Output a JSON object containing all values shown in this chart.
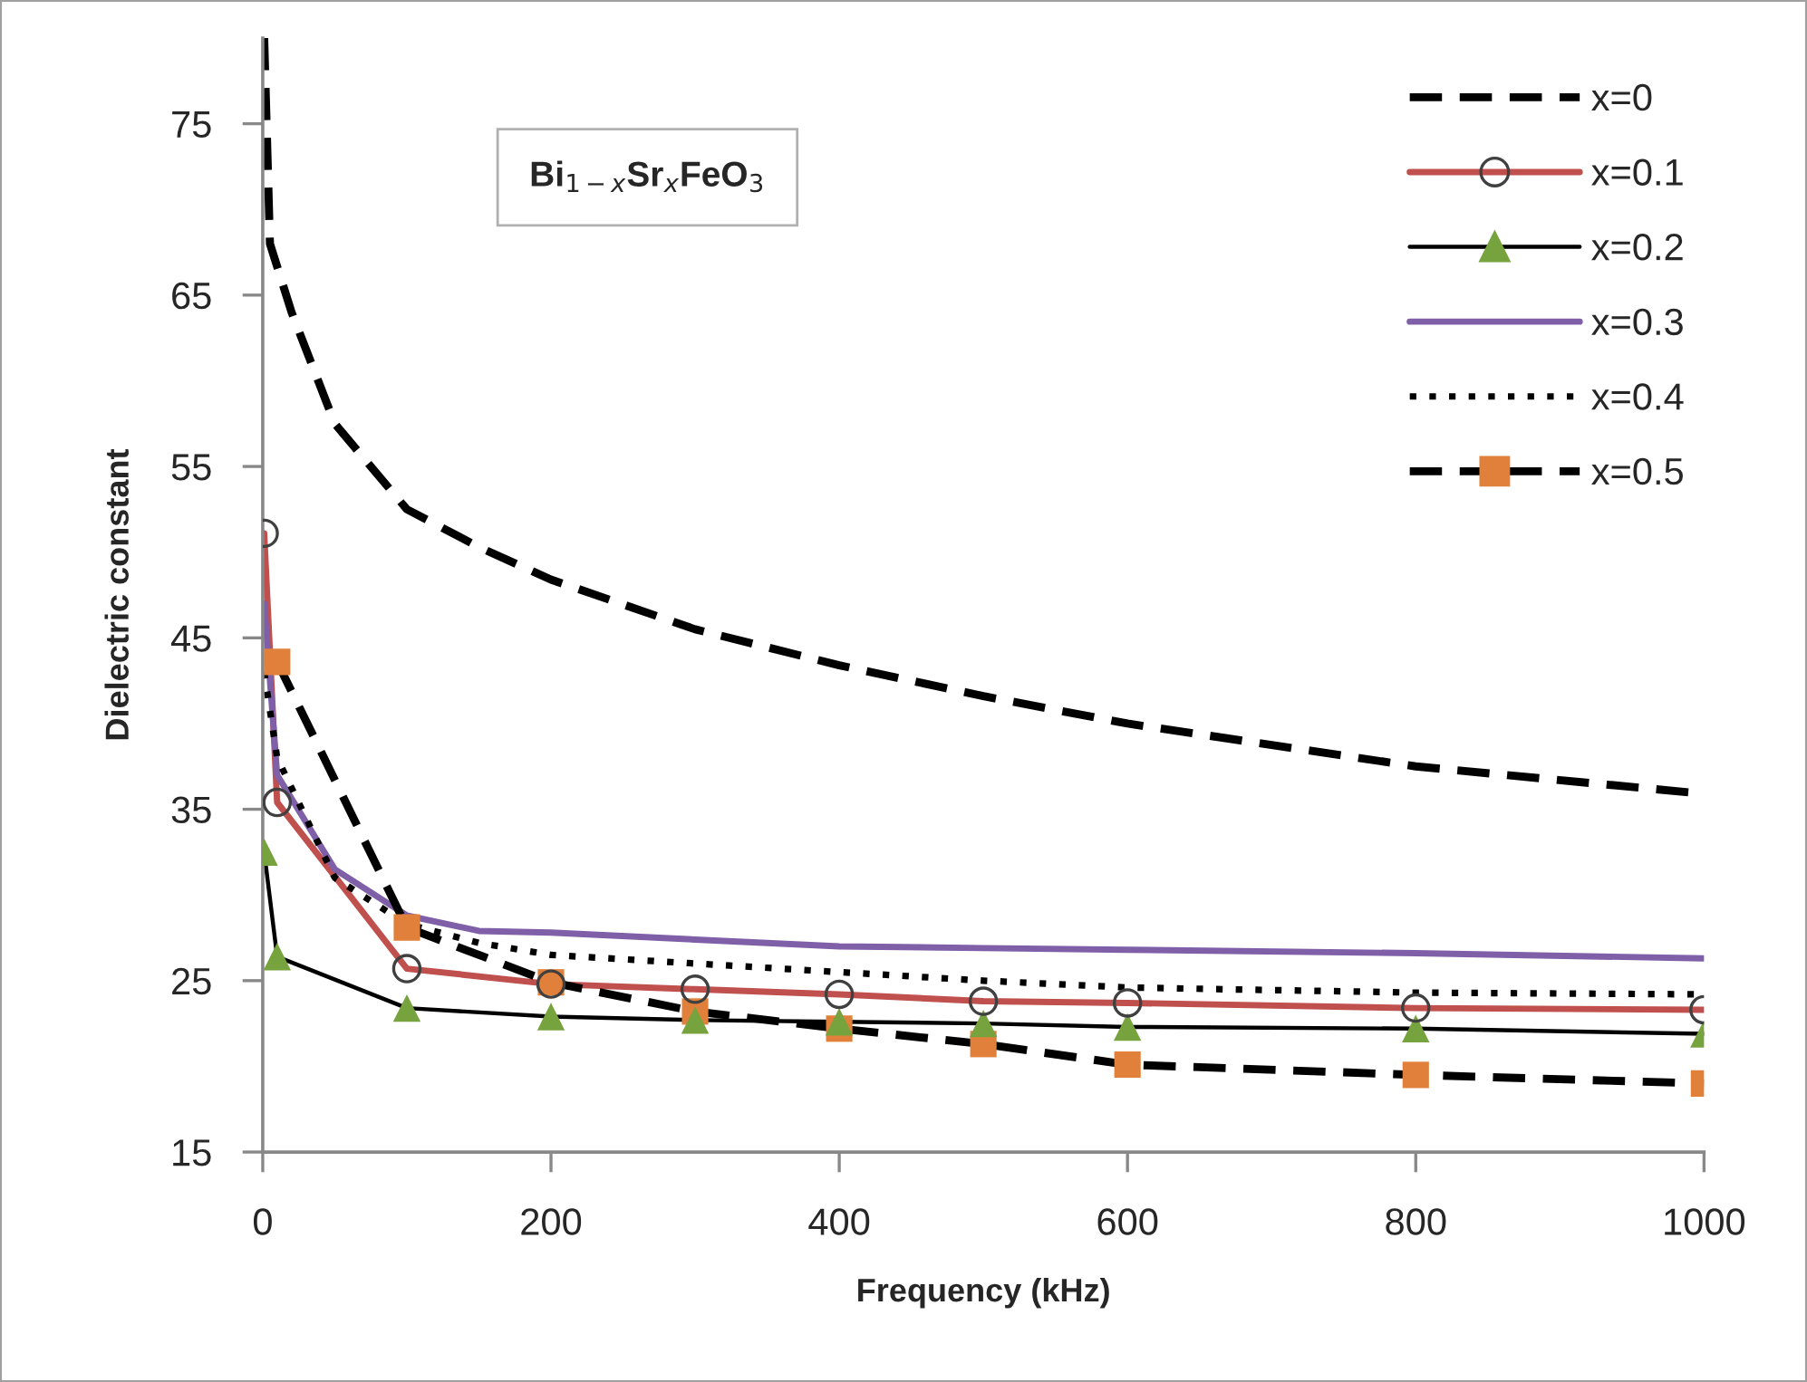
{
  "chart_data": {
    "type": "line",
    "xlabel": "Frequency (kHz)",
    "ylabel": "Dielectric constant",
    "annotations": [
      "Bi$_{1−x}$Sr$_{x}$FeO$_{3}$"
    ],
    "xlim": [
      0,
      1000
    ],
    "xticks": [
      0,
      200,
      400,
      600,
      800,
      1000
    ],
    "ylim": [
      15,
      80
    ],
    "yticks": [
      15,
      25,
      35,
      45,
      55,
      65,
      75
    ],
    "grid": false,
    "legend": "top right",
    "series": [
      {
        "name": "x=0",
        "color": "#000000",
        "line_style": "dashed",
        "marker": "none",
        "x": [
          1,
          5,
          20,
          50,
          100,
          150,
          200,
          300,
          400,
          500,
          600,
          800,
          1000
        ],
        "values": [
          80,
          68,
          64,
          57.5,
          52.5,
          50.3,
          48.4,
          45.5,
          43.4,
          41.6,
          40,
          37.5,
          35.9
        ]
      },
      {
        "name": "x=0.1",
        "color": "#c0504d",
        "line_style": "solid",
        "marker": "circle",
        "colors": [
          "#404040",
          "#404040",
          "#404040",
          "#404040",
          "#404040",
          "#404040",
          "#404040",
          "#404040",
          "#404040",
          "#404040"
        ],
        "x": [
          1,
          10,
          100,
          200,
          300,
          400,
          500,
          600,
          800,
          1000
        ],
        "values": [
          51.1,
          35.4,
          25.7,
          24.8,
          24.5,
          24.2,
          23.8,
          23.7,
          23.4,
          23.3
        ]
      },
      {
        "name": "x=0.2",
        "color": "#000000",
        "line_style": "solid",
        "marker": "triangle",
        "colors": [
          "#77a33f",
          "#77a33f",
          "#77a33f",
          "#77a33f",
          "#77a33f",
          "#77a33f",
          "#77a33f",
          "#77a33f",
          "#77a33f",
          "#77a33f"
        ],
        "x": [
          1,
          10,
          100,
          200,
          300,
          400,
          500,
          600,
          800,
          1000
        ],
        "values": [
          32.5,
          26.4,
          23.4,
          22.9,
          22.7,
          22.6,
          22.5,
          22.3,
          22.2,
          21.9
        ]
      },
      {
        "name": "x=0.3",
        "color": "#7f5fa8",
        "line_style": "solid",
        "marker": "none",
        "x": [
          1,
          10,
          50,
          100,
          150,
          200,
          300,
          400,
          500,
          600,
          800,
          1000
        ],
        "values": [
          47,
          37,
          31.5,
          28.8,
          27.9,
          27.8,
          27.4,
          27,
          26.9,
          26.8,
          26.6,
          26.3
        ]
      },
      {
        "name": "x=0.4",
        "color": "#000000",
        "line_style": "dotted",
        "marker": "none",
        "x": [
          1,
          10,
          50,
          100,
          150,
          200,
          300,
          400,
          500,
          600,
          800,
          1000
        ],
        "values": [
          43,
          38,
          31,
          28.3,
          27.2,
          26.5,
          26,
          25.5,
          25,
          24.6,
          24.3,
          24.2
        ]
      },
      {
        "name": "x=0.5",
        "color": "#000000",
        "line_style": "dashed",
        "marker": "square",
        "colors": [
          "#e0803a",
          "#e0803a",
          "#e0803a",
          "#e0803a",
          "#e0803a",
          "#e0803a",
          "#e0803a",
          "#e0803a",
          "#e0803a"
        ],
        "x": [
          10,
          100,
          200,
          300,
          400,
          500,
          600,
          800,
          1000
        ],
        "values": [
          43.6,
          28.1,
          24.9,
          23.2,
          22.2,
          21.3,
          20.1,
          19.5,
          19.0
        ]
      }
    ]
  }
}
